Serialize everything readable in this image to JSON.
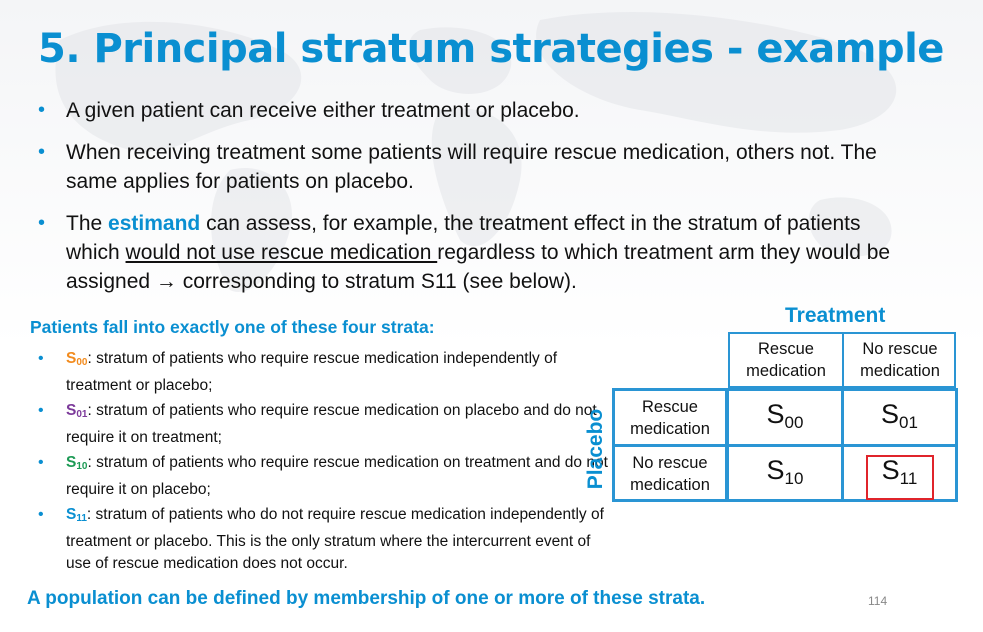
{
  "title": "5. Principal stratum strategies - example",
  "bullets": {
    "b1": "A given patient can receive either treatment or placebo.",
    "b2": "When receiving treatment some patients will require rescue medication, others not. The same applies for patients on placebo.",
    "b3_pre": "The ",
    "b3_kw": "estimand",
    "b3_mid": " can assess, for example, the treatment effect in the stratum of patients which ",
    "b3_ul": "would not use rescue medication ",
    "b3_post": "regardless to which treatment arm they would be assigned → corresponding to stratum S11 (see below)."
  },
  "strata": {
    "heading": "Patients fall into exactly one of these four strata:",
    "items": [
      {
        "sym": "S",
        "sub": "00",
        "text": ": stratum of patients who require rescue medication independently of treatment or placebo;"
      },
      {
        "sym": "S",
        "sub": "01",
        "text": ": stratum of patients who require rescue medication on placebo and do not require it on treatment;"
      },
      {
        "sym": "S",
        "sub": "10",
        "text": ": stratum of patients who require rescue medication on treatment and do not require it on placebo;"
      },
      {
        "sym": "S",
        "sub": "11",
        "text": ": stratum of patients who do not require rescue medication independently of treatment or placebo. This is the only stratum where the intercurrent event of use of rescue medication does not occur."
      }
    ]
  },
  "table": {
    "treatment_header": "Treatment",
    "placebo_header": "Placebo",
    "col_headers": [
      "Rescue medication",
      "No rescue medication"
    ],
    "row_headers": [
      "Rescue medication",
      "No rescue medication"
    ],
    "cells": [
      [
        {
          "sym": "S",
          "sub": "00"
        },
        {
          "sym": "S",
          "sub": "01"
        }
      ],
      [
        {
          "sym": "S",
          "sub": "10"
        },
        {
          "sym": "S",
          "sub": "11"
        }
      ]
    ]
  },
  "footer": "A population can be defined by membership of one or more of these strata.",
  "page_number": "114",
  "colors": {
    "accent_blue": "#0a8fd1",
    "s00": "#f28b1e",
    "s01": "#7c3a9a",
    "s10": "#1d9a55",
    "s11": "#0a8fd1",
    "highlight": "#e0242b"
  }
}
